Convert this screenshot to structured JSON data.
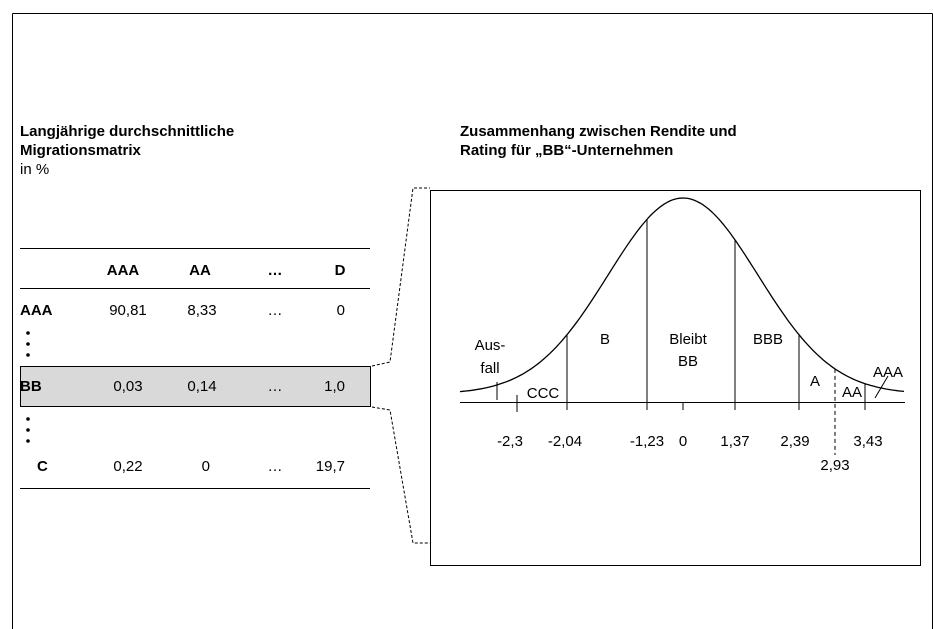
{
  "left": {
    "title": [
      "Langjährige durchschnittliche",
      "Migrationsmatrix"
    ],
    "unit": "in %"
  },
  "table": {
    "header": [
      "AAA",
      "AA",
      "…",
      "D"
    ],
    "rows": [
      [
        "AAA",
        "90,81",
        "8,33",
        "…",
        "0"
      ],
      [
        "BB",
        "0,03",
        "0,14",
        "…",
        "1,0"
      ],
      [
        "C",
        "0,22",
        "0",
        "…",
        "19,7"
      ]
    ]
  },
  "right": {
    "title": [
      "Zusammenhang zwischen Rendite und",
      "Rating für „BB“-Unternehmen"
    ]
  },
  "diagram": {
    "regions": [
      "Aus-",
      "fall",
      "CCC",
      "B",
      "Bleibt",
      "BB",
      "BBB",
      "A",
      "AA",
      "AAA"
    ],
    "ticks": [
      "-2,3",
      "-2,04",
      "-1,23",
      "0",
      "1,37",
      "2,39",
      "2,93",
      "3,43"
    ]
  }
}
